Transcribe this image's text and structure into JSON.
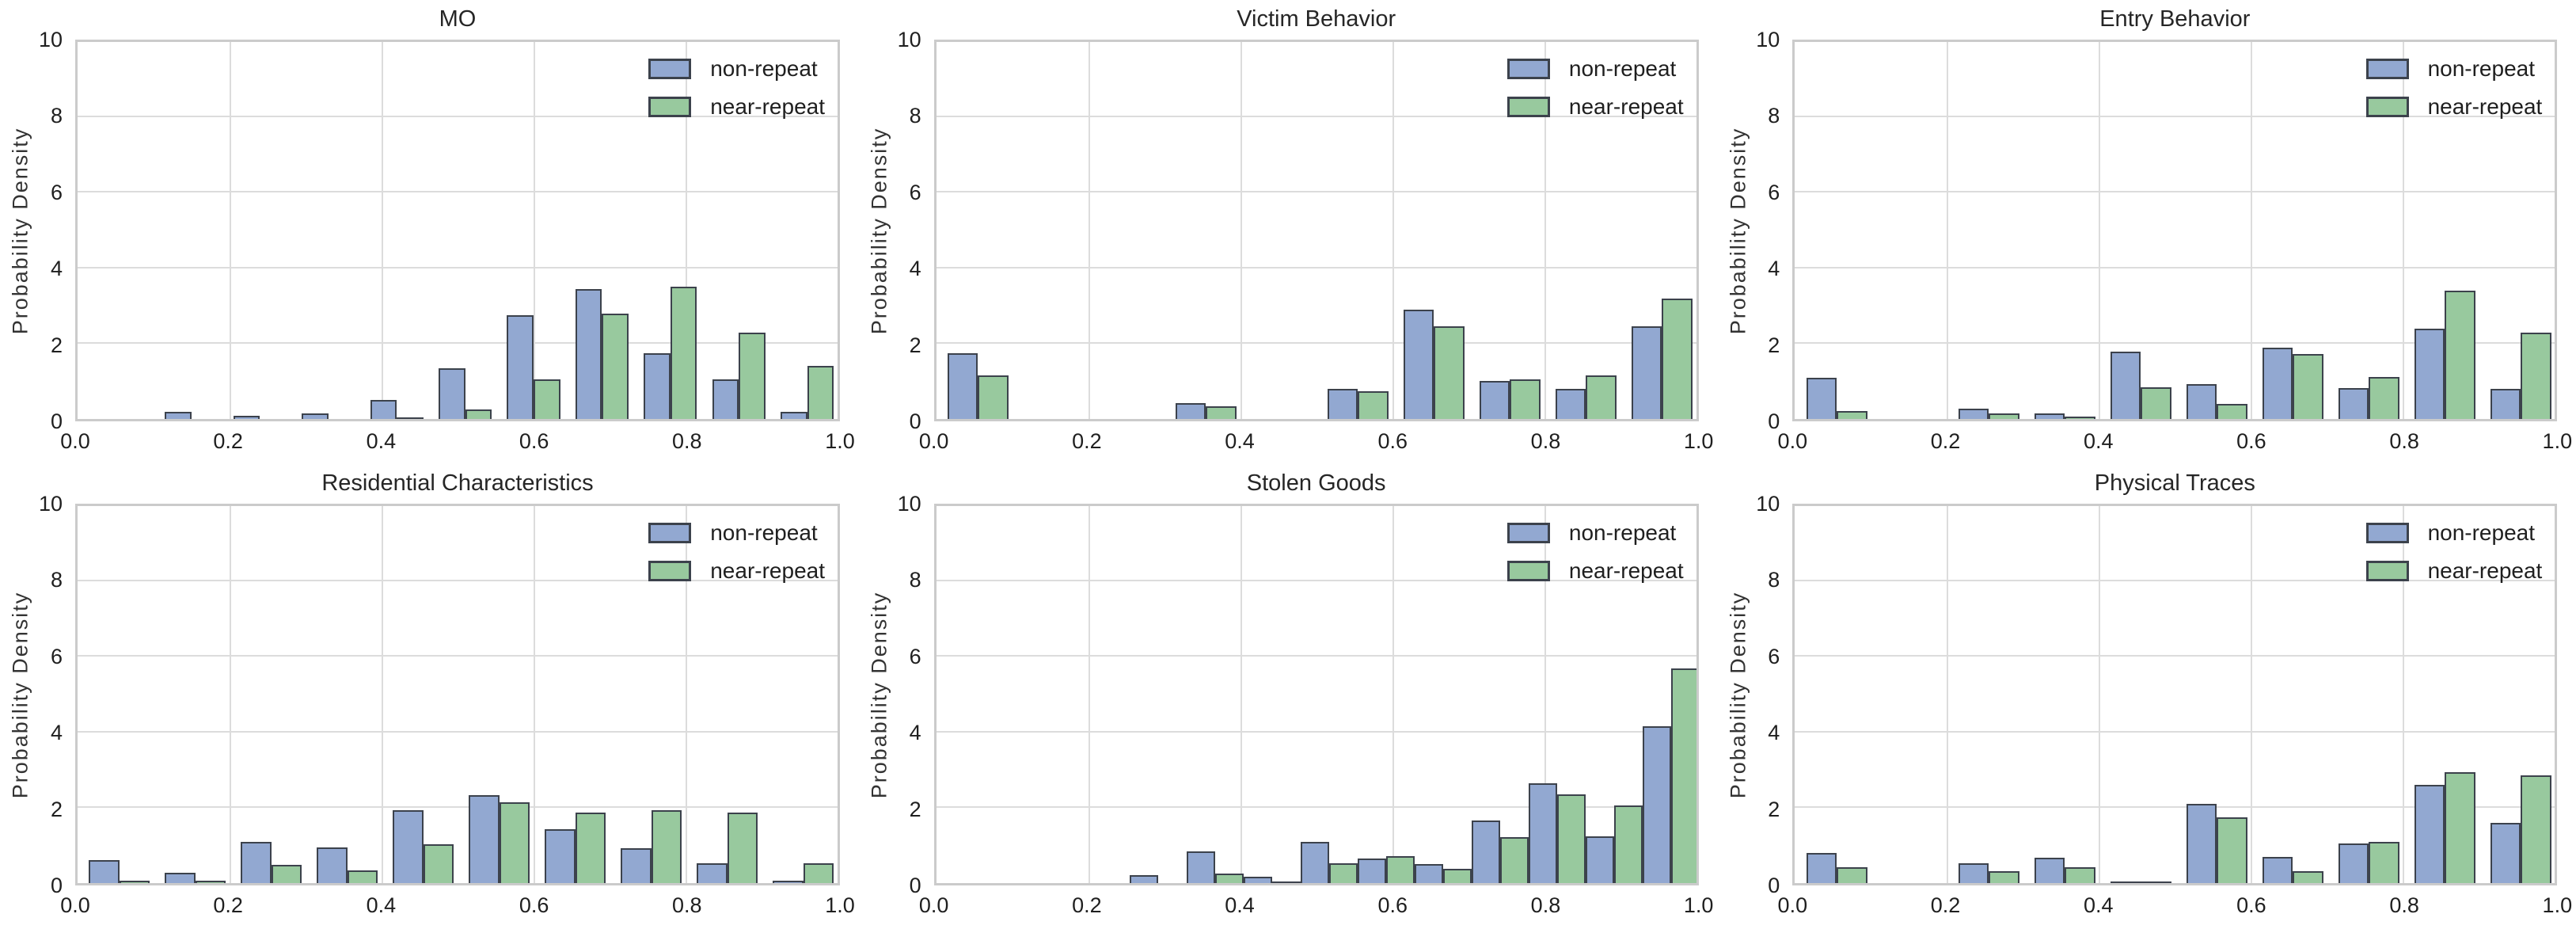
{
  "legend": {
    "non_repeat": "non-repeat",
    "near_repeat": "near-repeat"
  },
  "axes": {
    "ylabel": "Probability Density",
    "xticks": [
      0,
      0.2,
      0.4,
      0.6,
      0.8,
      1.0
    ],
    "xticklabels": [
      "0.0",
      "0.2",
      "0.4",
      "0.6",
      "0.8",
      "1.0"
    ],
    "yticks": [
      0,
      2,
      4,
      6,
      8,
      10
    ],
    "yticklabels": [
      "0",
      "2",
      "4",
      "6",
      "8",
      "10"
    ],
    "xlim": [
      0,
      1
    ],
    "ylim": [
      0,
      10
    ],
    "grid": true,
    "hgrid_values": [
      2,
      4,
      6,
      8
    ],
    "vgrid_values": [
      0.2,
      0.4,
      0.6,
      0.8
    ],
    "legend_position": "upper right"
  },
  "colors": {
    "non_repeat_fill": "#92a8d1",
    "near_repeat_fill": "#98c99e",
    "bar_edge": "#3c424c",
    "grid": "#dcdcdc",
    "frame": "#cbcbcb",
    "text": "#1f1f1f"
  },
  "chart_data": [
    {
      "type": "bar",
      "title": "MO",
      "xlabel": "",
      "ylabel": "Probability Density",
      "xlim": [
        0,
        1
      ],
      "ylim": [
        0,
        10
      ],
      "series_names": [
        "non-repeat",
        "near-repeat"
      ],
      "bar_width": 0.035,
      "groups": [
        {
          "x": 0.115,
          "non_repeat": 0.18,
          "near_repeat": 0
        },
        {
          "x": 0.205,
          "non_repeat": 0.08,
          "near_repeat": 0
        },
        {
          "x": 0.295,
          "non_repeat": 0.15,
          "near_repeat": 0
        },
        {
          "x": 0.385,
          "non_repeat": 0.5,
          "near_repeat": 0.04
        },
        {
          "x": 0.475,
          "non_repeat": 1.35,
          "near_repeat": 0.25
        },
        {
          "x": 0.565,
          "non_repeat": 2.75,
          "near_repeat": 1.05
        },
        {
          "x": 0.655,
          "non_repeat": 3.45,
          "near_repeat": 2.8
        },
        {
          "x": 0.745,
          "non_repeat": 1.75,
          "near_repeat": 3.5
        },
        {
          "x": 0.835,
          "non_repeat": 1.05,
          "near_repeat": 2.3
        },
        {
          "x": 0.925,
          "non_repeat": 0.18,
          "near_repeat": 1.4
        }
      ]
    },
    {
      "type": "bar",
      "title": "Victim Behavior",
      "xlabel": "",
      "ylabel": "Probability Density",
      "xlim": [
        0,
        1
      ],
      "ylim": [
        0,
        10
      ],
      "series_names": [
        "non-repeat",
        "near-repeat"
      ],
      "bar_width": 0.04,
      "groups": [
        {
          "x": 0.015,
          "non_repeat": 1.75,
          "near_repeat": 1.15
        },
        {
          "x": 0.315,
          "non_repeat": 0.42,
          "near_repeat": 0.33
        },
        {
          "x": 0.515,
          "non_repeat": 0.8,
          "near_repeat": 0.73
        },
        {
          "x": 0.615,
          "non_repeat": 2.9,
          "near_repeat": 2.45
        },
        {
          "x": 0.715,
          "non_repeat": 1.0,
          "near_repeat": 1.05
        },
        {
          "x": 0.815,
          "non_repeat": 0.8,
          "near_repeat": 1.15
        },
        {
          "x": 0.915,
          "non_repeat": 2.45,
          "near_repeat": 3.2
        }
      ]
    },
    {
      "type": "bar",
      "title": "Entry Behavior",
      "xlabel": "",
      "ylabel": "Probability Density",
      "xlim": [
        0,
        1
      ],
      "ylim": [
        0,
        10
      ],
      "series_names": [
        "non-repeat",
        "near-repeat"
      ],
      "bar_width": 0.04,
      "groups": [
        {
          "x": 0.015,
          "non_repeat": 1.1,
          "near_repeat": 0.2
        },
        {
          "x": 0.215,
          "non_repeat": 0.28,
          "near_repeat": 0.15
        },
        {
          "x": 0.315,
          "non_repeat": 0.15,
          "near_repeat": 0.07
        },
        {
          "x": 0.415,
          "non_repeat": 1.78,
          "near_repeat": 0.85
        },
        {
          "x": 0.515,
          "non_repeat": 0.93,
          "near_repeat": 0.4
        },
        {
          "x": 0.615,
          "non_repeat": 1.9,
          "near_repeat": 1.72
        },
        {
          "x": 0.715,
          "non_repeat": 0.82,
          "near_repeat": 1.12
        },
        {
          "x": 0.815,
          "non_repeat": 2.4,
          "near_repeat": 3.4
        },
        {
          "x": 0.915,
          "non_repeat": 0.8,
          "near_repeat": 2.3
        }
      ]
    },
    {
      "type": "bar",
      "title": "Residential Characteristics",
      "xlabel": "",
      "ylabel": "Probability Density",
      "xlim": [
        0,
        1
      ],
      "ylim": [
        0,
        10
      ],
      "series_names": [
        "non-repeat",
        "near-repeat"
      ],
      "bar_width": 0.04,
      "groups": [
        {
          "x": 0.015,
          "non_repeat": 0.6,
          "near_repeat": 0.06
        },
        {
          "x": 0.115,
          "non_repeat": 0.28,
          "near_repeat": 0.06
        },
        {
          "x": 0.215,
          "non_repeat": 1.1,
          "near_repeat": 0.48
        },
        {
          "x": 0.315,
          "non_repeat": 0.95,
          "near_repeat": 0.33
        },
        {
          "x": 0.415,
          "non_repeat": 1.93,
          "near_repeat": 1.03
        },
        {
          "x": 0.515,
          "non_repeat": 2.33,
          "near_repeat": 2.15
        },
        {
          "x": 0.615,
          "non_repeat": 1.43,
          "near_repeat": 1.87
        },
        {
          "x": 0.715,
          "non_repeat": 0.92,
          "near_repeat": 1.93
        },
        {
          "x": 0.815,
          "non_repeat": 0.52,
          "near_repeat": 1.87
        },
        {
          "x": 0.915,
          "non_repeat": 0.06,
          "near_repeat": 0.52
        }
      ]
    },
    {
      "type": "bar",
      "title": "Stolen Goods",
      "xlabel": "",
      "ylabel": "Probability Density",
      "xlim": [
        0,
        1
      ],
      "ylim": [
        0,
        10
      ],
      "series_names": [
        "non-repeat",
        "near-repeat"
      ],
      "bar_width": 0.0375,
      "groups": [
        {
          "x": 0.255,
          "non_repeat": 0.2,
          "near_repeat": 0
        },
        {
          "x": 0.33,
          "non_repeat": 0.85,
          "near_repeat": 0.25
        },
        {
          "x": 0.405,
          "non_repeat": 0.16,
          "near_repeat": 0.05
        },
        {
          "x": 0.48,
          "non_repeat": 1.1,
          "near_repeat": 0.52
        },
        {
          "x": 0.555,
          "non_repeat": 0.65,
          "near_repeat": 0.72
        },
        {
          "x": 0.63,
          "non_repeat": 0.5,
          "near_repeat": 0.38
        },
        {
          "x": 0.705,
          "non_repeat": 1.65,
          "near_repeat": 1.22
        },
        {
          "x": 0.78,
          "non_repeat": 2.65,
          "near_repeat": 2.35
        },
        {
          "x": 0.855,
          "non_repeat": 1.25,
          "near_repeat": 2.05
        },
        {
          "x": 0.93,
          "non_repeat": 4.15,
          "near_repeat": 5.7
        }
      ]
    },
    {
      "type": "bar",
      "title": "Physical Traces",
      "xlabel": "",
      "ylabel": "Probability Density",
      "xlim": [
        0,
        1
      ],
      "ylim": [
        0,
        10
      ],
      "series_names": [
        "non-repeat",
        "near-repeat"
      ],
      "bar_width": 0.04,
      "groups": [
        {
          "x": 0.015,
          "non_repeat": 0.8,
          "near_repeat": 0.42
        },
        {
          "x": 0.215,
          "non_repeat": 0.52,
          "near_repeat": 0.32
        },
        {
          "x": 0.315,
          "non_repeat": 0.67,
          "near_repeat": 0.42
        },
        {
          "x": 0.415,
          "non_repeat": 0.04,
          "near_repeat": 0.04
        },
        {
          "x": 0.515,
          "non_repeat": 2.1,
          "near_repeat": 1.75
        },
        {
          "x": 0.615,
          "non_repeat": 0.7,
          "near_repeat": 0.32
        },
        {
          "x": 0.715,
          "non_repeat": 1.05,
          "near_repeat": 1.1
        },
        {
          "x": 0.815,
          "non_repeat": 2.6,
          "near_repeat": 2.95
        },
        {
          "x": 0.915,
          "non_repeat": 1.6,
          "near_repeat": 2.85
        }
      ]
    }
  ]
}
